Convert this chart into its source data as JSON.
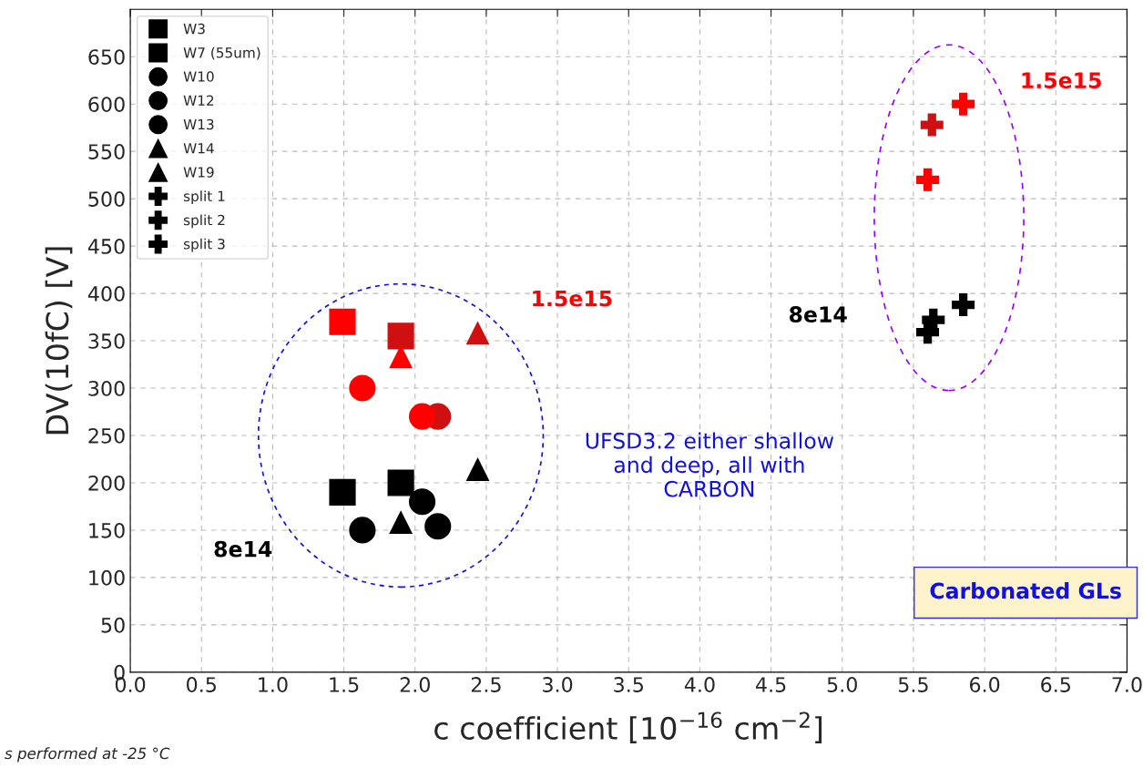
{
  "chart_data": {
    "type": "scatter",
    "xlabel": "c coefficient [10$^{−16}$ cm$^{−2}$]",
    "ylabel": "DV(10fC) [V]",
    "xlim": [
      0,
      7
    ],
    "ylim": [
      0,
      700
    ],
    "xticks": [
      {
        "value": 0,
        "label": "0.0"
      },
      0.5,
      {
        "value": 1,
        "label": "1.0"
      },
      1.5,
      {
        "value": 2,
        "label": "2.0"
      },
      2.5,
      {
        "value": 3,
        "label": "3.0"
      },
      3.5,
      {
        "value": 4,
        "label": "4.0"
      },
      4.5,
      {
        "value": 5,
        "label": "5.0"
      },
      5.5,
      {
        "value": 6,
        "label": "6.0"
      },
      6.5,
      {
        "value": 7,
        "label": "7.0"
      }
    ],
    "yticks": [
      0,
      50,
      100,
      150,
      200,
      250,
      300,
      350,
      400,
      450,
      500,
      550,
      600,
      650
    ],
    "grid": true,
    "legend": "top left",
    "series": [
      {
        "name": "W3",
        "marker": "square",
        "x": [
          1.49,
          1.49
        ],
        "values": [
          370,
          190
        ],
        "colors": [
          "#ff0000",
          "#000000"
        ]
      },
      {
        "name": "W7 (55um)",
        "marker": "square",
        "x": [
          1.9,
          1.9
        ],
        "values": [
          355,
          200
        ],
        "colors": [
          "#d01010",
          "#000000"
        ]
      },
      {
        "name": "W10",
        "marker": "circle",
        "x": [
          2.16,
          2.16
        ],
        "values": [
          270,
          154
        ],
        "colors": [
          "#d01010",
          "#000000"
        ]
      },
      {
        "name": "W12",
        "marker": "circle",
        "x": [
          2.05,
          2.05
        ],
        "values": [
          270,
          180
        ],
        "colors": [
          "#ff0000",
          "#000000"
        ]
      },
      {
        "name": "W13",
        "marker": "circle",
        "x": [
          1.63,
          1.63
        ],
        "values": [
          300,
          150
        ],
        "colors": [
          "#ff0000",
          "#000000"
        ]
      },
      {
        "name": "W14",
        "marker": "triangle",
        "x": [
          2.44,
          2.44
        ],
        "values": [
          358,
          214
        ],
        "colors": [
          "#d01010",
          "#000000"
        ]
      },
      {
        "name": "W19",
        "marker": "triangle",
        "x": [
          1.9,
          1.9
        ],
        "values": [
          333,
          158
        ],
        "colors": [
          "#ff0000",
          "#000000"
        ]
      },
      {
        "name": "split 1",
        "marker": "cross",
        "x": [
          5.6,
          5.6
        ],
        "values": [
          520,
          359
        ],
        "colors": [
          "#ff0000",
          "#000000"
        ]
      },
      {
        "name": "split 2",
        "marker": "cross",
        "x": [
          5.63,
          5.64
        ],
        "values": [
          578,
          372
        ],
        "colors": [
          "#d01010",
          "#000000"
        ]
      },
      {
        "name": "split 3",
        "marker": "cross",
        "x": [
          5.85,
          5.85
        ],
        "values": [
          600,
          388
        ],
        "colors": [
          "#ff0000",
          "#000000"
        ]
      }
    ],
    "annotations": [
      "1.5e15",
      "8e14",
      "8e14",
      "1.5e15",
      "UFSD3.2 either shallow\nand deep, all with\nCARBON",
      "Carbonated GLs",
      "s performed at -25 °C"
    ]
  }
}
